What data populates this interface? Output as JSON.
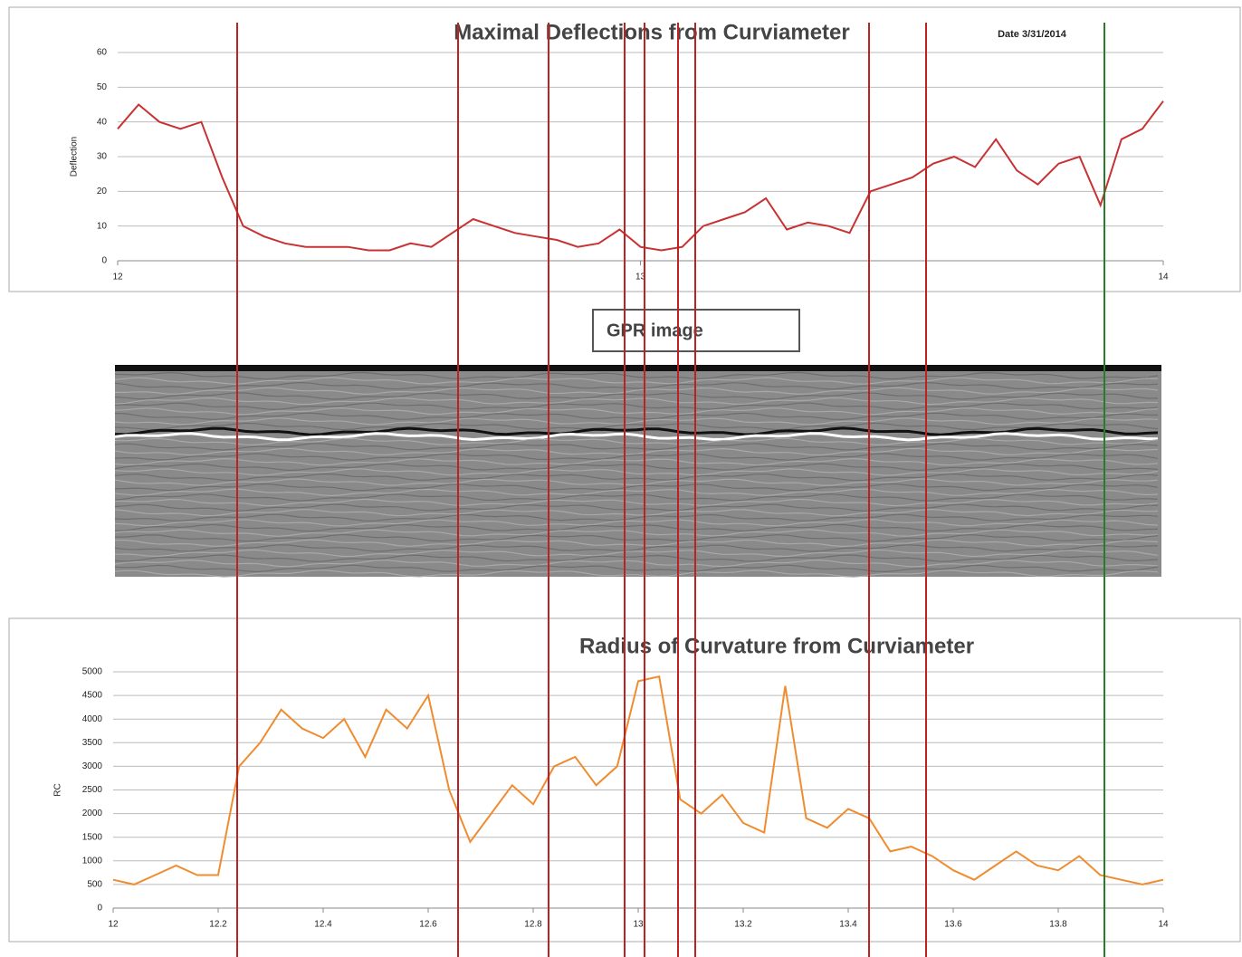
{
  "chart_data": [
    {
      "type": "line",
      "title": "Maximal Deflections from Curviameter",
      "annotation": "Date 3/31/2014",
      "ylabel": "Deflection",
      "x": [
        12,
        12.04,
        12.08,
        12.12,
        12.16,
        12.2,
        12.24,
        12.28,
        12.32,
        12.36,
        12.4,
        12.44,
        12.48,
        12.52,
        12.56,
        12.6,
        12.64,
        12.68,
        12.72,
        12.76,
        12.8,
        12.84,
        12.88,
        12.92,
        12.96,
        13,
        13.04,
        13.08,
        13.12,
        13.16,
        13.2,
        13.24,
        13.28,
        13.32,
        13.36,
        13.4,
        13.44,
        13.48,
        13.52,
        13.56,
        13.6,
        13.64,
        13.68,
        13.72,
        13.76,
        13.8,
        13.84,
        13.88,
        13.92,
        13.96,
        14
      ],
      "series": [
        {
          "color": "#c83232",
          "values": [
            38,
            45,
            40,
            38,
            40,
            24,
            10,
            7,
            5,
            4,
            4,
            4,
            3,
            3,
            5,
            4,
            8,
            12,
            10,
            8,
            7,
            6,
            4,
            5,
            9,
            4,
            3,
            4,
            10,
            12,
            14,
            18,
            9,
            11,
            10,
            8,
            20,
            22,
            24,
            28,
            30,
            27,
            35,
            26,
            22,
            28,
            30,
            16,
            35,
            38,
            46
          ]
        }
      ],
      "xlim": [
        12,
        14
      ],
      "xticks": [
        12,
        13,
        14
      ],
      "ylim": [
        0,
        60
      ],
      "yticks": [
        0,
        10,
        20,
        30,
        40,
        50,
        60
      ],
      "grid": true
    },
    {
      "type": "line",
      "title": "Radius of Curvature from Curviameter",
      "ylabel": "RC",
      "x": [
        12,
        12.04,
        12.08,
        12.12,
        12.16,
        12.2,
        12.24,
        12.28,
        12.32,
        12.36,
        12.4,
        12.44,
        12.48,
        12.52,
        12.56,
        12.6,
        12.64,
        12.68,
        12.72,
        12.76,
        12.8,
        12.84,
        12.88,
        12.92,
        12.96,
        13,
        13.04,
        13.08,
        13.12,
        13.16,
        13.2,
        13.24,
        13.28,
        13.32,
        13.36,
        13.4,
        13.44,
        13.48,
        13.52,
        13.56,
        13.6,
        13.64,
        13.68,
        13.72,
        13.76,
        13.8,
        13.84,
        13.88,
        13.92,
        13.96,
        14
      ],
      "series": [
        {
          "color": "#f08c30",
          "values": [
            600,
            500,
            700,
            900,
            700,
            700,
            3000,
            3500,
            4200,
            3800,
            3600,
            4000,
            3200,
            4200,
            3800,
            4500,
            2500,
            1400,
            2000,
            2600,
            2200,
            3000,
            3200,
            2600,
            3000,
            4800,
            4900,
            2300,
            2000,
            2400,
            1800,
            1600,
            4700,
            1900,
            1700,
            2100,
            1900,
            1200,
            1300,
            1100,
            800,
            600,
            900,
            1200,
            900,
            800,
            1100,
            700,
            600,
            500,
            600
          ]
        }
      ],
      "xlim": [
        12,
        14
      ],
      "xticks": [
        12,
        12.2,
        12.4,
        12.6,
        12.8,
        13,
        13.2,
        13.4,
        13.6,
        13.8,
        14
      ],
      "ylim": [
        0,
        5000
      ],
      "yticks": [
        0,
        500,
        1000,
        1500,
        2000,
        2500,
        3000,
        3500,
        4000,
        4500,
        5000
      ],
      "grid": true
    }
  ],
  "gpr_label": "GPR image"
}
